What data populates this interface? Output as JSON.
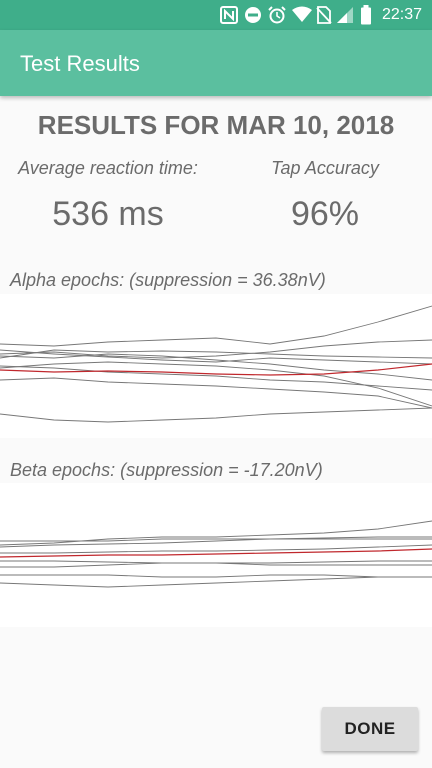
{
  "status_bar": {
    "time": "22:37",
    "icons": [
      "nfc-icon",
      "do-not-disturb-icon",
      "alarm-icon",
      "wifi-icon",
      "no-sim-icon",
      "signal-icon",
      "battery-icon"
    ]
  },
  "app_bar": {
    "title": "Test Results"
  },
  "results": {
    "heading": "RESULTS FOR MAR 10, 2018",
    "reaction_label": "Average reaction time:",
    "reaction_value": "536 ms",
    "accuracy_label": "Tap Accuracy",
    "accuracy_value": "96%"
  },
  "charts": {
    "alpha": {
      "caption": "Alpha epochs: (suppression = 36.38nV)",
      "trace_color": "#777777",
      "average_color": "#c0282d",
      "traces": [
        [
          64,
          56,
          58,
          57,
          58,
          60,
          62,
          63,
          64
        ],
        [
          56,
          60,
          63,
          66,
          68,
          64,
          66,
          68,
          70
        ],
        [
          72,
          74,
          78,
          80,
          82,
          86,
          88,
          92,
          96
        ],
        [
          50,
          52,
          48,
          46,
          44,
          50,
          42,
          28,
          12
        ],
        [
          86,
          84,
          88,
          90,
          92,
          95,
          98,
          102,
          114
        ],
        [
          120,
          126,
          128,
          126,
          124,
          120,
          118,
          116,
          114
        ],
        [
          62,
          64,
          60,
          62,
          66,
          70,
          76,
          80,
          86
        ],
        [
          74,
          70,
          68,
          70,
          72,
          76,
          82,
          94,
          112
        ],
        [
          60,
          58,
          62,
          64,
          62,
          58,
          52,
          48,
          46
        ]
      ],
      "average": [
        76,
        78,
        77,
        78,
        80,
        81,
        80,
        76,
        70
      ]
    },
    "beta": {
      "caption": "Beta epochs: (suppression = -17.20nV)",
      "trace_color": "#777777",
      "average_color": "#c0282d",
      "traces": [
        [
          62,
          60,
          56,
          54,
          54,
          52,
          50,
          46,
          38
        ],
        [
          64,
          62,
          61,
          60,
          58,
          56,
          55,
          54,
          54
        ],
        [
          70,
          70,
          69,
          68,
          68,
          67,
          66,
          64,
          62
        ],
        [
          78,
          78,
          79,
          80,
          80,
          80,
          79,
          78,
          78
        ],
        [
          84,
          84,
          82,
          80,
          80,
          82,
          82,
          82,
          82
        ],
        [
          92,
          92,
          92,
          94,
          94,
          92,
          92,
          94,
          94
        ],
        [
          100,
          102,
          104,
          102,
          100,
          98,
          96,
          94,
          94
        ],
        [
          58,
          58,
          58,
          56,
          56,
          56,
          56,
          56,
          56
        ]
      ],
      "average": [
        74,
        73,
        72,
        72,
        71,
        70,
        69,
        68,
        66
      ]
    }
  },
  "done_button": {
    "label": "DONE"
  }
}
